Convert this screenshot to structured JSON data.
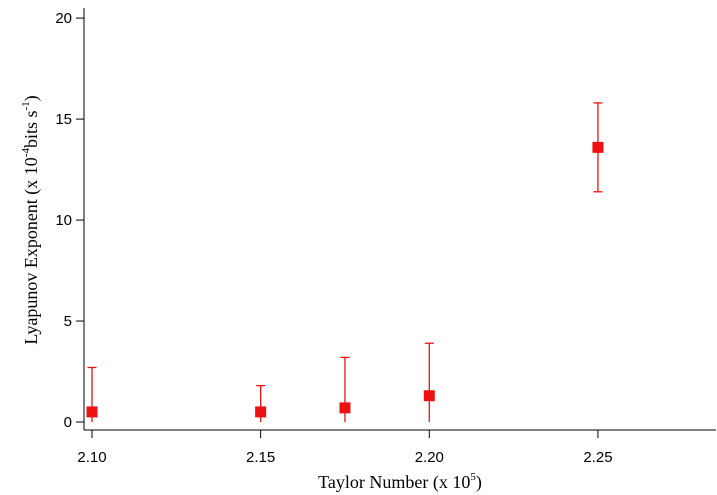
{
  "chart_data": {
    "type": "scatter",
    "title": "",
    "xlabel": {
      "text": "Taylor Number (x 10",
      "exp": "5",
      "close": ")"
    },
    "ylabel": {
      "text": "Lyapunov Exponent (x 10",
      "exp": "-4",
      "mid": "bits s",
      "exp2": "-1",
      "close": ")"
    },
    "xlim": [
      2.1,
      2.285
    ],
    "ylim": [
      0,
      20.5
    ],
    "xticks": [
      2.1,
      2.15,
      2.2,
      2.25
    ],
    "xtick_labels": [
      "2.10",
      "2.15",
      "2.20",
      "2.25"
    ],
    "yticks": [
      0,
      5,
      10,
      15,
      20
    ],
    "ytick_labels": [
      "0",
      "5",
      "10",
      "15",
      "20"
    ],
    "grid": false,
    "legend": false,
    "marker_color": "#ee1111",
    "points": [
      {
        "x": 2.1,
        "y": 0.5,
        "ylow": 0.0,
        "yhigh": 2.7
      },
      {
        "x": 2.15,
        "y": 0.5,
        "ylow": 0.0,
        "yhigh": 1.8
      },
      {
        "x": 2.175,
        "y": 0.7,
        "ylow": 0.0,
        "yhigh": 3.2
      },
      {
        "x": 2.2,
        "y": 1.3,
        "ylow": 0.0,
        "yhigh": 3.9
      },
      {
        "x": 2.25,
        "y": 13.6,
        "ylow": 11.4,
        "yhigh": 15.8
      }
    ]
  }
}
